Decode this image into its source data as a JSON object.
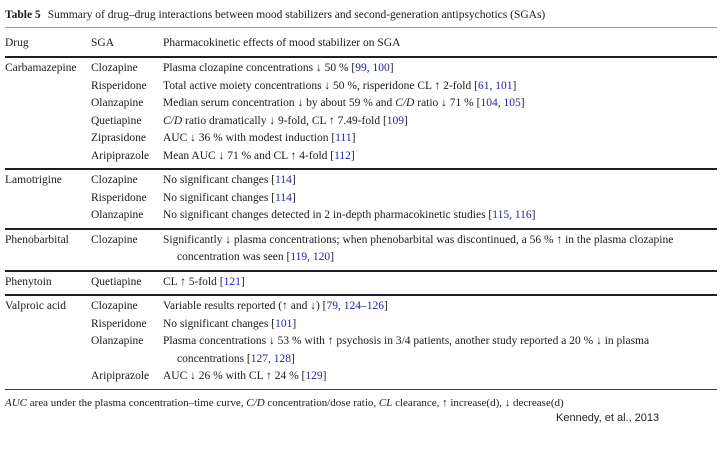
{
  "page": {
    "title_bold": "Table 5",
    "title_rest": "Summary of drug–drug interactions between mood stabilizers and second-generation antipsychotics (SGAs)",
    "credit": "Kennedy, et al., 2013"
  },
  "columns": [
    "Drug",
    "SGA",
    "Pharmacokinetic effects of mood stabilizer on SGA"
  ],
  "groups": [
    {
      "drug": "Carbamazepine",
      "rows": [
        {
          "sga": "Clozapine",
          "effect": [
            {
              "t": "Plasma clozapine concentrations ↓ 50 % ["
            },
            {
              "t": "99, 100",
              "s": "c"
            },
            {
              "t": "]"
            }
          ]
        },
        {
          "sga": "Risperidone",
          "effect": [
            {
              "t": "Total active moiety concentrations ↓ 50 %, risperidone CL ↑ 2-fold ["
            },
            {
              "t": "61, 101",
              "s": "c"
            },
            {
              "t": "]"
            }
          ]
        },
        {
          "sga": "Olanzapine",
          "effect": [
            {
              "t": "Median serum concentration ↓ by about 59 % and "
            },
            {
              "t": "C/D",
              "s": "i"
            },
            {
              "t": " ratio ↓ 71 % ["
            },
            {
              "t": "104, 105",
              "s": "c"
            },
            {
              "t": "]"
            }
          ]
        },
        {
          "sga": "Quetiapine",
          "effect": [
            {
              "t": "C/D",
              "s": "i"
            },
            {
              "t": " ratio dramatically ↓ 9-fold, CL ↑ 7.49-fold ["
            },
            {
              "t": "109",
              "s": "c"
            },
            {
              "t": "]"
            }
          ]
        },
        {
          "sga": "Ziprasidone",
          "effect": [
            {
              "t": "AUC ↓ 36 % with modest induction ["
            },
            {
              "t": "111",
              "s": "c"
            },
            {
              "t": "]"
            }
          ]
        },
        {
          "sga": "Aripiprazole",
          "effect": [
            {
              "t": "Mean AUC ↓ 71 % and CL ↑ 4-fold ["
            },
            {
              "t": "112",
              "s": "c"
            },
            {
              "t": "]"
            }
          ]
        }
      ]
    },
    {
      "drug": "Lamotrigine",
      "rows": [
        {
          "sga": "Clozapine",
          "effect": [
            {
              "t": "No significant changes ["
            },
            {
              "t": "114",
              "s": "c"
            },
            {
              "t": "]"
            }
          ]
        },
        {
          "sga": "Risperidone",
          "effect": [
            {
              "t": "No significant changes ["
            },
            {
              "t": "114",
              "s": "c"
            },
            {
              "t": "]"
            }
          ]
        },
        {
          "sga": "Olanzapine",
          "effect": [
            {
              "t": "No significant changes detected in 2 in-depth pharmacokinetic studies ["
            },
            {
              "t": "115, 116",
              "s": "c"
            },
            {
              "t": "]"
            }
          ]
        }
      ]
    },
    {
      "drug": "Phenobarbital",
      "rows": [
        {
          "sga": "Clozapine",
          "effect": [
            {
              "t": "Significantly ↓ plasma concentrations; when phenobarbital was discontinued, a 56 % ↑ in the plasma clozapine concentration was seen ["
            },
            {
              "t": "119, 120",
              "s": "c"
            },
            {
              "t": "]"
            }
          ]
        }
      ]
    },
    {
      "drug": "Phenytoin",
      "rows": [
        {
          "sga": "Quetiapine",
          "effect": [
            {
              "t": "CL ↑ 5-fold ["
            },
            {
              "t": "121",
              "s": "c"
            },
            {
              "t": "]"
            }
          ]
        }
      ]
    },
    {
      "drug": "Valproic acid",
      "rows": [
        {
          "sga": "Clozapine",
          "effect": [
            {
              "t": "Variable results reported (↑ and ↓) ["
            },
            {
              "t": "79, 124–126",
              "s": "c"
            },
            {
              "t": "]"
            }
          ]
        },
        {
          "sga": "Risperidone",
          "effect": [
            {
              "t": "No significant changes ["
            },
            {
              "t": "101",
              "s": "c"
            },
            {
              "t": "]"
            }
          ]
        },
        {
          "sga": "Olanzapine",
          "effect": [
            {
              "t": "Plasma concentrations ↓ 53 % with ↑ psychosis in 3/4 patients, another study reported a 20 % ↓ in plasma concentrations ["
            },
            {
              "t": "127, 128",
              "s": "c"
            },
            {
              "t": "]"
            }
          ]
        },
        {
          "sga": "Aripiprazole",
          "effect": [
            {
              "t": "AUC ↓ 26 % with CL ↑ 24 % ["
            },
            {
              "t": "129",
              "s": "c"
            },
            {
              "t": "]"
            }
          ]
        }
      ]
    }
  ],
  "footnote": [
    {
      "t": "AUC",
      "s": "i"
    },
    {
      "t": " area under the plasma concentration–time curve, "
    },
    {
      "t": "C/D",
      "s": "i"
    },
    {
      "t": " concentration/dose ratio, "
    },
    {
      "t": "CL",
      "s": "i"
    },
    {
      "t": " clearance, ↑ increase(d), ↓ decrease(d)"
    }
  ],
  "colors": {
    "citation": "#2323aa",
    "text": "#1b1b1b",
    "rule_dark": "#1f1f1f",
    "rule_light": "#9b9b9b"
  }
}
